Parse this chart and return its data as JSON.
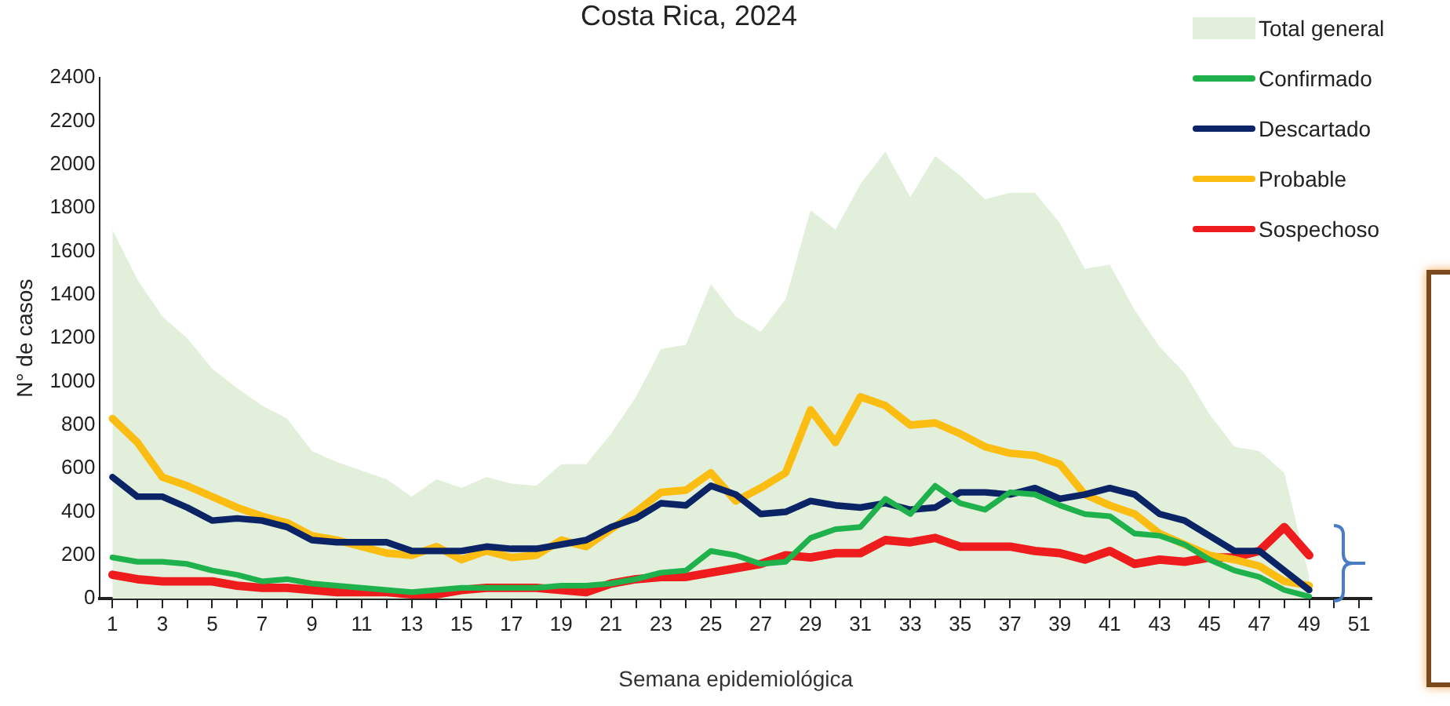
{
  "chart_data": {
    "type": "line",
    "title": "Costa Rica, 2024",
    "xlabel": "Semana epidemiológica",
    "ylabel": "N° de casos",
    "x": [
      1,
      2,
      3,
      4,
      5,
      6,
      7,
      8,
      9,
      10,
      11,
      12,
      13,
      14,
      15,
      16,
      17,
      18,
      19,
      20,
      21,
      22,
      23,
      24,
      25,
      26,
      27,
      28,
      29,
      30,
      31,
      32,
      33,
      34,
      35,
      36,
      37,
      38,
      39,
      40,
      41,
      42,
      43,
      44,
      45,
      46,
      47,
      48,
      49
    ],
    "xlim": [
      0.5,
      51.5
    ],
    "xticks": [
      1,
      {
        "value": 2,
        "label": null
      },
      3,
      {
        "value": 4,
        "label": null
      },
      5,
      {
        "value": 6,
        "label": null
      },
      7,
      {
        "value": 8,
        "label": null
      },
      9,
      {
        "value": 10,
        "label": null
      },
      11,
      {
        "value": 12,
        "label": null
      },
      13,
      {
        "value": 14,
        "label": null
      },
      15,
      {
        "value": 16,
        "label": null
      },
      17,
      {
        "value": 18,
        "label": null
      },
      19,
      {
        "value": 20,
        "label": null
      },
      21,
      {
        "value": 22,
        "label": null
      },
      23,
      {
        "value": 24,
        "label": null
      },
      25,
      {
        "value": 26,
        "label": null
      },
      27,
      {
        "value": 28,
        "label": null
      },
      29,
      {
        "value": 30,
        "label": null
      },
      31,
      {
        "value": 32,
        "label": null
      },
      33,
      {
        "value": 34,
        "label": null
      },
      35,
      {
        "value": 36,
        "label": null
      },
      37,
      {
        "value": 38,
        "label": null
      },
      39,
      {
        "value": 40,
        "label": null
      },
      41,
      {
        "value": 42,
        "label": null
      },
      43,
      {
        "value": 44,
        "label": null
      },
      45,
      {
        "value": 46,
        "label": null
      },
      47,
      {
        "value": 48,
        "label": null
      },
      49,
      {
        "value": 50,
        "label": null
      },
      51
    ],
    "ylim": [
      0,
      2400
    ],
    "yticks": [
      0,
      200,
      400,
      600,
      800,
      1000,
      1200,
      1400,
      1600,
      1800,
      2000,
      2200,
      2400
    ],
    "grid": false,
    "legend": "top right",
    "marker": "none",
    "line_style": "solid",
    "series": [
      {
        "name": "Total general",
        "type": "area",
        "color": "#e2efda",
        "values": [
          1700,
          1470,
          1300,
          1200,
          1060,
          970,
          890,
          830,
          680,
          630,
          590,
          550,
          470,
          550,
          510,
          560,
          530,
          520,
          620,
          620,
          760,
          930,
          1150,
          1170,
          1450,
          1300,
          1230,
          1380,
          1790,
          1700,
          1910,
          2060,
          1850,
          2040,
          1950,
          1840,
          1870,
          1870,
          1730,
          1520,
          1540,
          1330,
          1160,
          1040,
          850,
          700,
          680,
          580,
          100
        ]
      },
      {
        "name": "Confirmado",
        "color": "#1fb24c",
        "values": [
          190,
          170,
          170,
          160,
          130,
          110,
          80,
          90,
          70,
          60,
          50,
          40,
          30,
          40,
          50,
          50,
          50,
          50,
          60,
          60,
          70,
          90,
          120,
          130,
          220,
          200,
          160,
          170,
          280,
          320,
          330,
          460,
          390,
          520,
          440,
          410,
          490,
          480,
          430,
          390,
          380,
          300,
          290,
          250,
          180,
          130,
          100,
          40,
          10
        ]
      },
      {
        "name": "Descartado",
        "color": "#0b2466",
        "values": [
          560,
          470,
          470,
          420,
          360,
          370,
          360,
          330,
          270,
          260,
          260,
          260,
          220,
          220,
          220,
          240,
          230,
          230,
          250,
          270,
          330,
          370,
          440,
          430,
          520,
          480,
          390,
          400,
          450,
          430,
          420,
          440,
          410,
          420,
          490,
          490,
          480,
          510,
          460,
          480,
          510,
          480,
          390,
          360,
          290,
          220,
          220,
          130,
          40
        ]
      },
      {
        "name": "Probable",
        "color": "#fbbd12",
        "values": [
          830,
          720,
          560,
          520,
          470,
          420,
          380,
          350,
          290,
          270,
          240,
          210,
          200,
          240,
          180,
          220,
          190,
          200,
          270,
          240,
          320,
          400,
          490,
          500,
          580,
          450,
          510,
          580,
          870,
          720,
          930,
          890,
          800,
          810,
          760,
          700,
          670,
          660,
          620,
          480,
          430,
          390,
          300,
          250,
          200,
          180,
          150,
          80,
          60
        ]
      },
      {
        "name": "Sospechoso",
        "color": "#ee1c1c",
        "values": [
          110,
          90,
          80,
          80,
          80,
          60,
          50,
          50,
          40,
          30,
          30,
          30,
          20,
          20,
          40,
          50,
          50,
          50,
          40,
          30,
          70,
          90,
          100,
          100,
          120,
          140,
          160,
          200,
          190,
          210,
          210,
          270,
          260,
          280,
          240,
          240,
          240,
          220,
          210,
          180,
          220,
          160,
          180,
          170,
          190,
          190,
          220,
          330,
          200
        ]
      }
    ]
  }
}
